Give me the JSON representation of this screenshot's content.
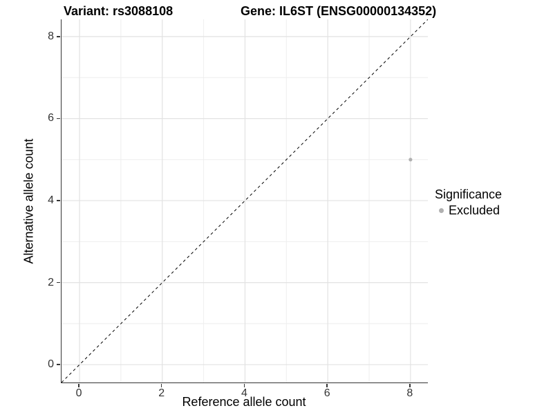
{
  "chart_data": {
    "type": "scatter",
    "title_left": "Variant: rs3088108",
    "title_right": "Gene: IL6ST (ENSG00000134352)",
    "xlabel": "Reference allele count",
    "ylabel": "Alternative allele count",
    "xlim": [
      -0.435,
      8.42
    ],
    "ylim": [
      -0.435,
      8.42
    ],
    "x_ticks": [
      0,
      2,
      4,
      6,
      8
    ],
    "y_ticks": [
      0,
      2,
      4,
      6,
      8
    ],
    "minor_grid": [
      1,
      3,
      5,
      7
    ],
    "grid": true,
    "legend_position": "right",
    "identity_line": {
      "slope": 1,
      "intercept": 0,
      "style": "dashed",
      "color": "#000000",
      "dash": "4 4"
    },
    "series": [
      {
        "name": "Excluded",
        "color": "#b0b0b0",
        "points": [
          {
            "x": 8,
            "y": 5
          }
        ]
      }
    ],
    "legend": {
      "title": "Significance",
      "items": [
        {
          "label": "Excluded",
          "color": "#b0b0b0"
        }
      ]
    },
    "colors": {
      "grid_major": "#e2e2e2",
      "grid_minor": "#eeeeee",
      "axis_line": "#333333",
      "tick_text": "#333333"
    }
  }
}
